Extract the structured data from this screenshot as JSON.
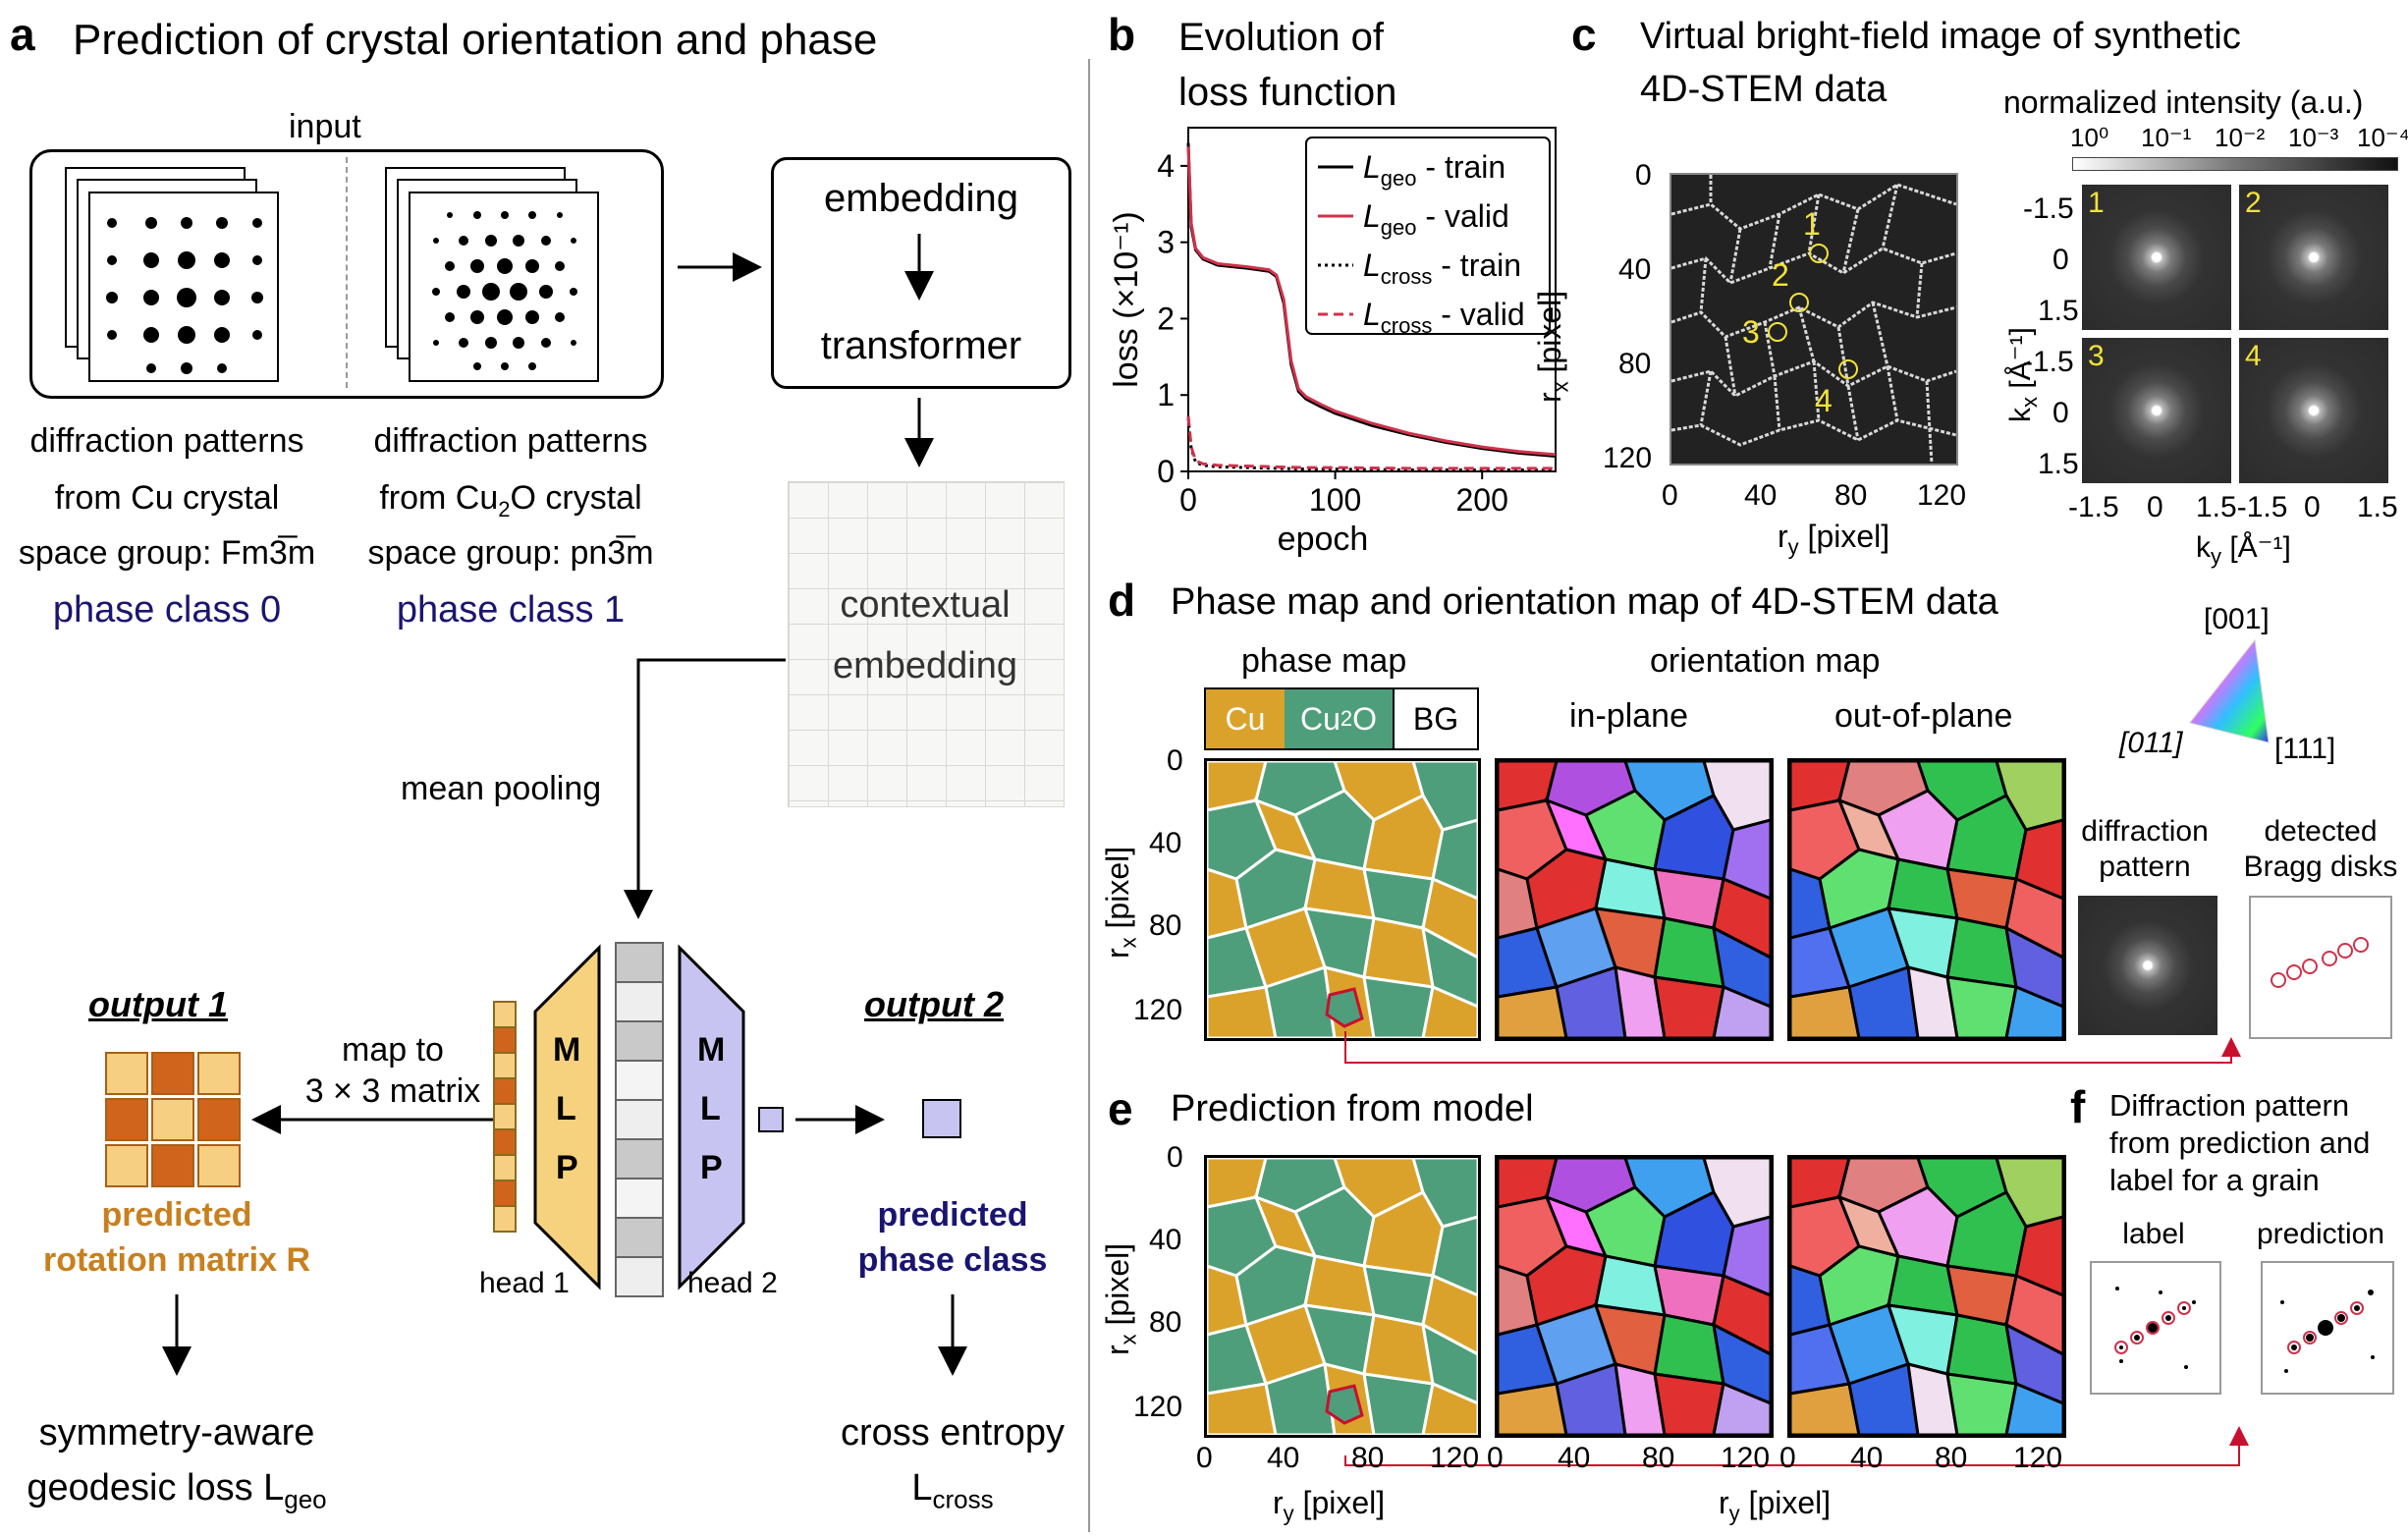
{
  "panel_a": {
    "letter": "a",
    "title": "Prediction of crystal orientation and phase",
    "input_label": "input",
    "cu": {
      "line1": "diffraction patterns",
      "line2": "from Cu crystal",
      "line3": "space group: Fm3̅m",
      "phase": "phase class 0"
    },
    "cu2o": {
      "line1": "diffraction patterns",
      "line2a": "from Cu",
      "line2sub": "2",
      "line2b": "O crystal",
      "line3": "space group: pn3̅m",
      "phase": "phase class 1"
    },
    "embedding": "embedding",
    "transformer": "transformer",
    "contextual1": "contextual",
    "contextual2": "embedding",
    "mean_pooling": "mean pooling",
    "output1": "output 1",
    "output2": "output 2",
    "map_to1": "map to",
    "map_to2": "3 × 3 matrix",
    "mlp_letters": [
      "M",
      "L",
      "P"
    ],
    "head1": "head 1",
    "head2": "head 2",
    "pred_rot1": "predicted",
    "pred_rot2": "rotation matrix R",
    "pred_phase1": "predicted",
    "pred_phase2": "phase class",
    "loss1_l1": "symmetry-aware",
    "loss1_l2": "geodesic loss L",
    "loss1_sub": "geo",
    "loss2_l1": "cross entropy",
    "loss2_l2": "L",
    "loss2_sub": "cross"
  },
  "panel_b": {
    "letter": "b",
    "title1": "Evolution of",
    "title2": "loss function"
  },
  "chart_data": {
    "type": "line",
    "title": "Evolution of loss function",
    "xlabel": "epoch",
    "ylabel": "loss (×10⁻¹)",
    "xlim": [
      0,
      250
    ],
    "ylim": [
      0,
      4.5
    ],
    "xticks": [
      "0",
      "100",
      "200"
    ],
    "yticks": [
      "0",
      "1",
      "2",
      "3",
      "4"
    ],
    "legend_position": "top-right",
    "series": [
      {
        "name": "L_geo - train",
        "label_main": "L",
        "label_sub": "geo",
        "label_rest": " - train",
        "color": "#000000",
        "style": "solid",
        "x": [
          0,
          2,
          5,
          10,
          20,
          40,
          55,
          60,
          65,
          70,
          75,
          80,
          90,
          100,
          125,
          150,
          175,
          200,
          225,
          250
        ],
        "y": [
          4.3,
          3.2,
          2.9,
          2.78,
          2.7,
          2.66,
          2.62,
          2.55,
          2.2,
          1.4,
          1.05,
          0.95,
          0.85,
          0.76,
          0.6,
          0.48,
          0.38,
          0.3,
          0.24,
          0.2
        ]
      },
      {
        "name": "L_geo - valid",
        "label_main": "L",
        "label_sub": "geo",
        "label_rest": " - valid",
        "color": "#d0314b",
        "style": "solid",
        "x": [
          0,
          2,
          5,
          10,
          20,
          40,
          55,
          60,
          65,
          70,
          75,
          80,
          90,
          100,
          125,
          150,
          175,
          200,
          225,
          250
        ],
        "y": [
          4.25,
          3.25,
          2.92,
          2.8,
          2.72,
          2.68,
          2.64,
          2.57,
          2.25,
          1.45,
          1.08,
          0.98,
          0.88,
          0.79,
          0.63,
          0.5,
          0.4,
          0.32,
          0.26,
          0.22
        ]
      },
      {
        "name": "L_cross - train",
        "label_main": "L",
        "label_sub": "cross",
        "label_rest": " - train",
        "color": "#000000",
        "style": "dotted",
        "x": [
          0,
          2,
          5,
          10,
          20,
          40,
          60,
          80,
          100,
          150,
          200,
          250
        ],
        "y": [
          0.7,
          0.3,
          0.12,
          0.08,
          0.06,
          0.05,
          0.04,
          0.03,
          0.03,
          0.02,
          0.02,
          0.02
        ]
      },
      {
        "name": "L_cross - valid",
        "label_main": "L",
        "label_sub": "cross",
        "label_rest": " - valid",
        "color": "#d0314b",
        "style": "dashed",
        "x": [
          0,
          2,
          5,
          10,
          20,
          40,
          60,
          80,
          100,
          150,
          200,
          250
        ],
        "y": [
          0.72,
          0.32,
          0.14,
          0.1,
          0.08,
          0.07,
          0.06,
          0.05,
          0.05,
          0.04,
          0.04,
          0.04
        ]
      }
    ]
  },
  "panel_c": {
    "letter": "c",
    "title1": "Virtual bright-field image of synthetic",
    "title2": "4D-STEM data",
    "colorbar_title": "normalized intensity (a.u.)",
    "colorbar_ticks": [
      "10⁰",
      "10⁻¹",
      "10⁻²",
      "10⁻³",
      "10⁻⁴"
    ],
    "vbf_xticks": [
      "0",
      "40",
      "80",
      "120"
    ],
    "vbf_yticks": [
      "0",
      "40",
      "80",
      "120"
    ],
    "vbf_xlabel": "r",
    "vbf_xlabel_sub": "y",
    "vbf_xlabel_unit": " [pixel]",
    "vbf_ylabel": "r",
    "vbf_ylabel_sub": "x",
    "vbf_ylabel_unit": " [pixel]",
    "markers": [
      "1",
      "2",
      "3",
      "4"
    ],
    "dp_labels": [
      "1",
      "2",
      "3",
      "4"
    ],
    "k_yticks": [
      "-1.5",
      "0",
      "1.5",
      "-1.5",
      "0",
      "1.5"
    ],
    "k_xticks": [
      "-1.5",
      "0",
      "1.5-1.5",
      "0",
      "1.5"
    ],
    "k_xlabel": "k",
    "k_xlabel_sub": "y",
    "k_ylabel": "k",
    "k_ylabel_sub": "x",
    "k_unit": " [Å⁻¹]"
  },
  "panel_d": {
    "letter": "d",
    "title": "Phase map and orientation map of 4D-STEM data",
    "phase_map": "phase map",
    "legend": [
      "Cu",
      "Cu2O",
      "BG"
    ],
    "legend_cu": "Cu",
    "legend_cu2o_a": "Cu",
    "legend_cu2o_sub": "2",
    "legend_cu2o_b": "O",
    "legend_bg": "BG",
    "orientation_map": "orientation map",
    "in_plane": "in-plane",
    "out_of_plane": "out-of-plane",
    "ipf_top": "[001]",
    "ipf_left": "[011]",
    "ipf_right": "[111]",
    "dp_label1": "diffraction",
    "dp_label2": "pattern",
    "bragg_label1": "detected",
    "bragg_label2": "Bragg disks",
    "yticks": [
      "0",
      "40",
      "80",
      "120"
    ],
    "ylabel": "r",
    "ylabel_sub": "x",
    "ylabel_unit": " [pixel]"
  },
  "panel_e": {
    "letter": "e",
    "title": "Prediction from model",
    "yticks": [
      "0",
      "40",
      "80",
      "120"
    ],
    "xticks": [
      "0",
      "40",
      "80",
      "120"
    ],
    "xlabel": "r",
    "xlabel_sub": "y",
    "xlabel_unit": " [pixel]",
    "ylabel": "r",
    "ylabel_sub": "x",
    "ylabel_unit": " [pixel]"
  },
  "panel_f": {
    "letter": "f",
    "title1": "Diffraction pattern",
    "title2": "from prediction and",
    "title3": "label for a grain",
    "label": "label",
    "prediction": "prediction"
  },
  "colors": {
    "cu": "#dba22b",
    "cu2o": "#4f9e7b",
    "navy": "#1a1570",
    "orange_text": "#c8801e",
    "matrix_dark": "#d0641c",
    "matrix_light": "#f6cf83",
    "mlp1": "#f6d27f",
    "mlp2": "#c8c4f2",
    "red": "#d0314b"
  }
}
